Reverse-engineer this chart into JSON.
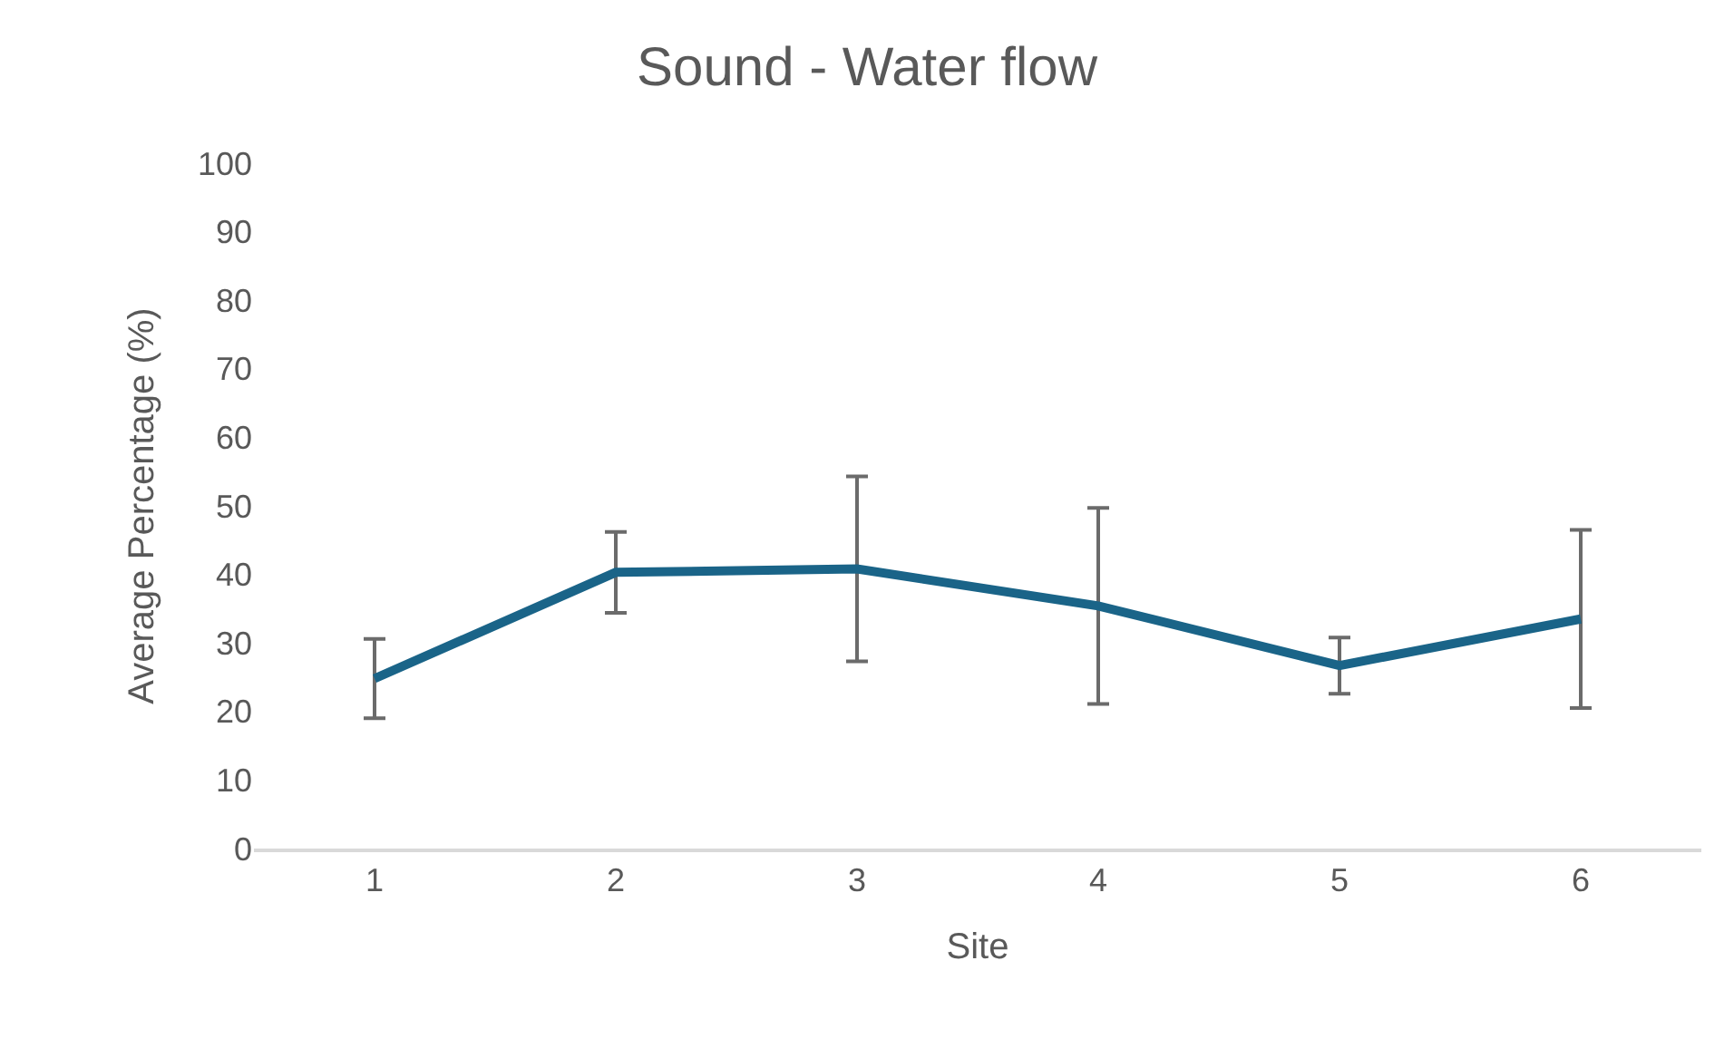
{
  "chart_data": {
    "type": "line",
    "title": "Sound - Water flow",
    "xlabel": "Site",
    "ylabel": "Average Percentage (%)",
    "categories": [
      "1",
      "2",
      "3",
      "4",
      "5",
      "6"
    ],
    "series": [
      {
        "color": "#1a6488",
        "values": [
          24.8,
          40.3,
          40.8,
          35.4,
          26.7,
          33.5
        ],
        "errors": [
          5.8,
          5.9,
          13.5,
          14.3,
          4.1,
          13
        ]
      }
    ],
    "ylim": [
      0,
      100
    ],
    "yticks": [
      0,
      10,
      20,
      30,
      40,
      50,
      60,
      70,
      80,
      90,
      100
    ],
    "grid": false,
    "marker": "none",
    "line_style": "solid"
  }
}
